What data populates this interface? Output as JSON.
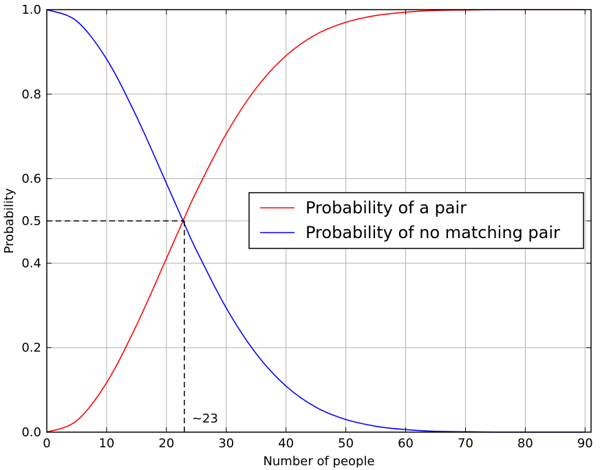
{
  "chart_data": {
    "type": "line",
    "xlabel": "Number of people",
    "ylabel": "Probability",
    "xlim": [
      0,
      91
    ],
    "ylim": [
      0,
      1
    ],
    "xticks": [
      0,
      10,
      20,
      30,
      40,
      50,
      60,
      70,
      80,
      90
    ],
    "xtick_labels": [
      "0",
      "10",
      "20",
      "30",
      "40",
      "50",
      "60",
      "70",
      "80",
      "90"
    ],
    "yticks": [
      0.0,
      0.2,
      0.4,
      0.5,
      0.6,
      0.8,
      1.0
    ],
    "ytick_labels": [
      "0.0",
      "0.2",
      "0.4",
      "0.5",
      "0.6",
      "0.8",
      "1.0"
    ],
    "grid": true,
    "legend_position": "center-right",
    "series": [
      {
        "name": "Probability of a pair",
        "color": "#ff0000",
        "x": [
          0,
          5,
          10,
          15,
          20,
          23,
          25,
          30,
          35,
          40,
          45,
          50,
          55,
          60,
          65,
          70,
          75,
          80,
          85,
          90
        ],
        "values": [
          0.0,
          0.027,
          0.117,
          0.253,
          0.411,
          0.507,
          0.569,
          0.706,
          0.814,
          0.891,
          0.941,
          0.97,
          0.986,
          0.994,
          0.998,
          0.999,
          1.0,
          1.0,
          1.0,
          1.0
        ]
      },
      {
        "name": "Probability of no matching pair",
        "color": "#0000ff",
        "x": [
          0,
          5,
          10,
          15,
          20,
          23,
          25,
          30,
          35,
          40,
          45,
          50,
          55,
          60,
          65,
          70,
          75,
          80,
          85,
          90
        ],
        "values": [
          1.0,
          0.973,
          0.883,
          0.747,
          0.589,
          0.493,
          0.431,
          0.294,
          0.186,
          0.109,
          0.059,
          0.03,
          0.014,
          0.006,
          0.002,
          0.001,
          0.0,
          0.0,
          0.0,
          0.0
        ]
      }
    ],
    "annotations": [
      {
        "text": "~23",
        "x": 23,
        "y": 0.5
      }
    ]
  }
}
